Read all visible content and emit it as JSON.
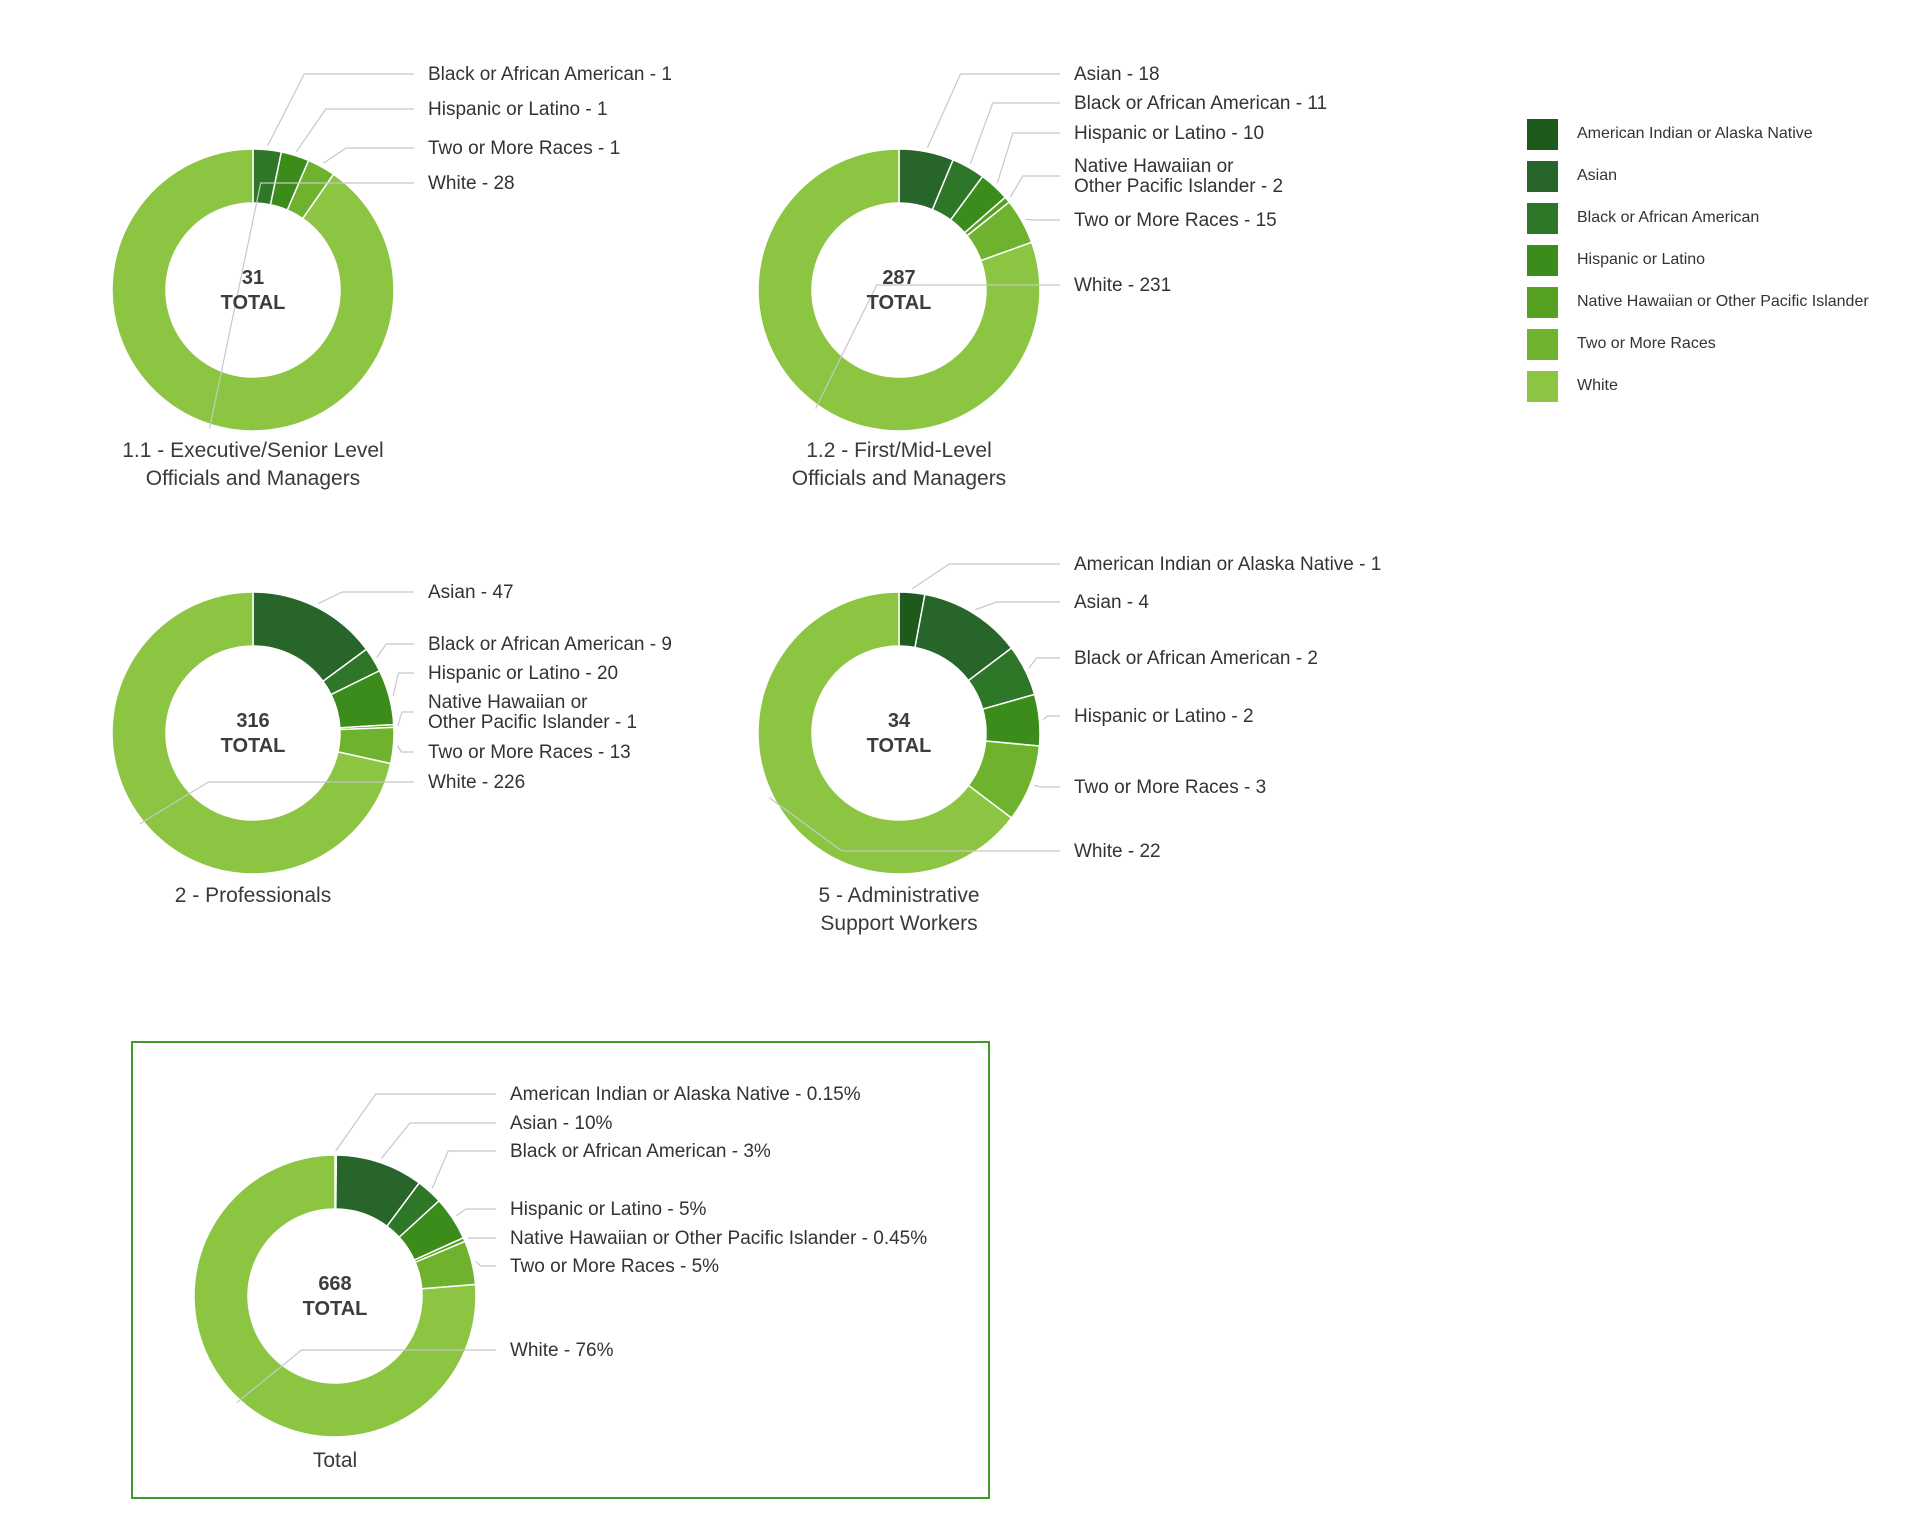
{
  "categories": [
    "American Indian or Alaska Native",
    "Asian",
    "Black or African American",
    "Hispanic or Latino",
    "Native Hawaiian or Other Pacific Islander",
    "Two or More Races",
    "White"
  ],
  "colors": [
    "#1e5a1c",
    "#27652a",
    "#2e7628",
    "#3c8c1c",
    "#56a022",
    "#6eb22e",
    "#8bc541"
  ],
  "total_word": "TOTAL",
  "chart_data": [
    {
      "type": "pie",
      "title": "1.1 - Executive/Senior Level\nOfficials and Managers",
      "total": "31",
      "slices": [
        {
          "category": "Black or African American",
          "value": 1,
          "label": "Black or African American - 1"
        },
        {
          "category": "Hispanic or Latino",
          "value": 1,
          "label": "Hispanic or Latino - 1"
        },
        {
          "category": "Two or More Races",
          "value": 1,
          "label": "Two or More Races - 1"
        },
        {
          "category": "White",
          "value": 28,
          "label": "White - 28"
        }
      ]
    },
    {
      "type": "pie",
      "title": "1.2 - First/Mid-Level\nOfficials and Managers",
      "total": "287",
      "slices": [
        {
          "category": "Asian",
          "value": 18,
          "label": "Asian - 18"
        },
        {
          "category": "Black or African American",
          "value": 11,
          "label": "Black or African American - 11"
        },
        {
          "category": "Hispanic or Latino",
          "value": 10,
          "label": "Hispanic or Latino - 10"
        },
        {
          "category": "Native Hawaiian or Other Pacific Islander",
          "value": 2,
          "label": "Native Hawaiian or\nOther Pacific Islander - 2"
        },
        {
          "category": "Two or More Races",
          "value": 15,
          "label": "Two or More Races - 15"
        },
        {
          "category": "White",
          "value": 231,
          "label": "White - 231"
        }
      ]
    },
    {
      "type": "pie",
      "title": "2 - Professionals",
      "total": "316",
      "slices": [
        {
          "category": "Asian",
          "value": 47,
          "label": "Asian - 47"
        },
        {
          "category": "Black or African American",
          "value": 9,
          "label": "Black or African American - 9"
        },
        {
          "category": "Hispanic or Latino",
          "value": 20,
          "label": "Hispanic or Latino - 20"
        },
        {
          "category": "Native Hawaiian or Other Pacific Islander",
          "value": 1,
          "label": "Native Hawaiian or\nOther Pacific Islander - 1"
        },
        {
          "category": "Two or More Races",
          "value": 13,
          "label": "Two or More Races - 13"
        },
        {
          "category": "White",
          "value": 226,
          "label": "White - 226"
        }
      ]
    },
    {
      "type": "pie",
      "title": "5 - Administrative\nSupport Workers",
      "total": "34",
      "slices": [
        {
          "category": "American Indian or Alaska Native",
          "value": 1,
          "label": "American Indian or Alaska Native - 1"
        },
        {
          "category": "Asian",
          "value": 4,
          "label": "Asian - 4"
        },
        {
          "category": "Black or African American",
          "value": 2,
          "label": "Black or African American - 2"
        },
        {
          "category": "Hispanic or Latino",
          "value": 2,
          "label": "Hispanic or Latino - 2"
        },
        {
          "category": "Two or More Races",
          "value": 3,
          "label": "Two or More Races - 3"
        },
        {
          "category": "White",
          "value": 22,
          "label": "White - 22"
        }
      ]
    },
    {
      "type": "pie",
      "title": "Total",
      "total": "668",
      "slices": [
        {
          "category": "American Indian or Alaska Native",
          "value": 0.15,
          "label": "American Indian or Alaska Native - 0.15%"
        },
        {
          "category": "Asian",
          "value": 10,
          "label": "Asian - 10%"
        },
        {
          "category": "Black or African American",
          "value": 3,
          "label": "Black or African American - 3%"
        },
        {
          "category": "Hispanic or Latino",
          "value": 5,
          "label": "Hispanic or Latino - 5%"
        },
        {
          "category": "Native Hawaiian or Other Pacific Islander",
          "value": 0.45,
          "label": "Native Hawaiian or Other Pacific Islander - 0.45%"
        },
        {
          "category": "Two or More Races",
          "value": 5,
          "label": "Two or More Races - 5%"
        },
        {
          "category": "White",
          "value": 76,
          "label": "White - 76%"
        }
      ]
    }
  ]
}
